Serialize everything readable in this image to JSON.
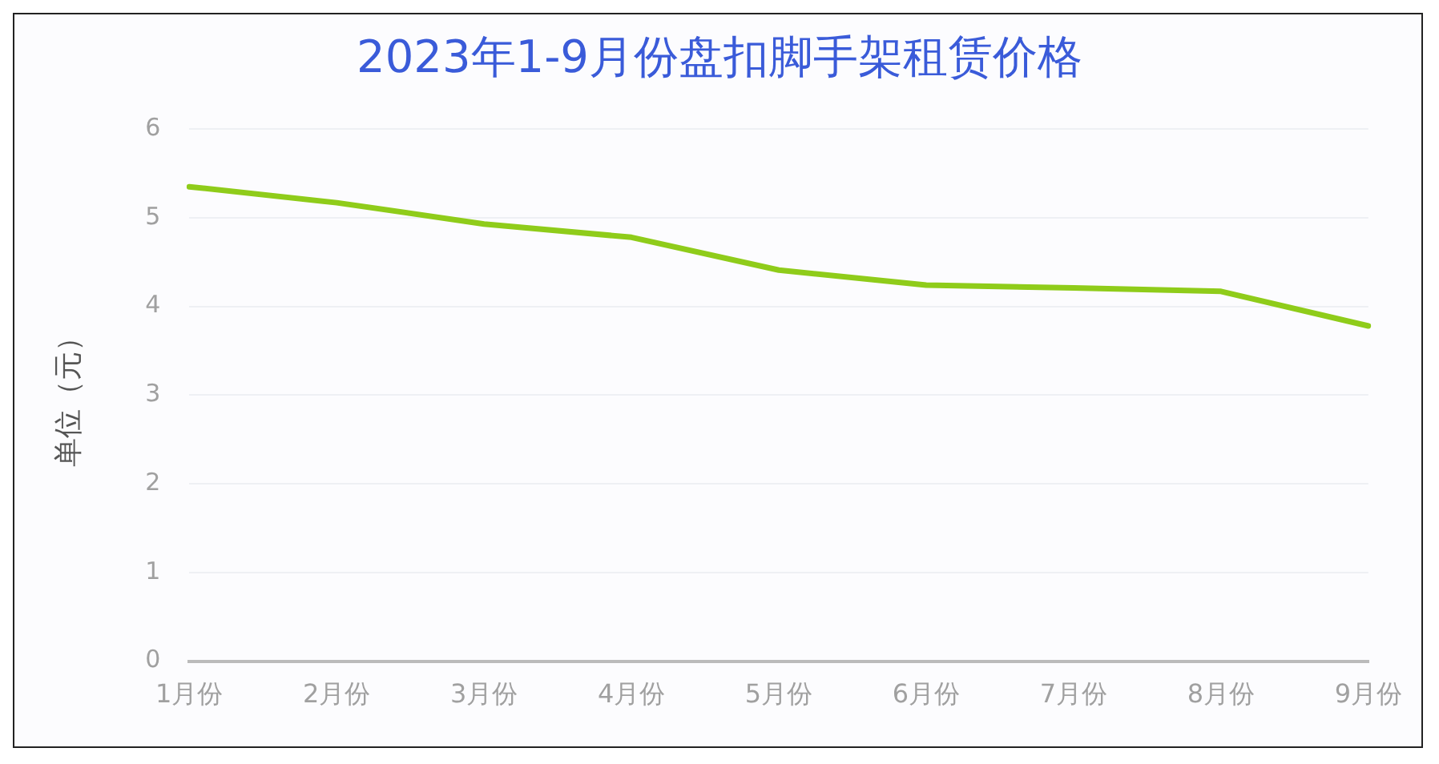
{
  "chart_data": {
    "type": "line",
    "title": "2023年1-9月份盘扣脚手架租赁价格",
    "ylabel": "单位（元）",
    "categories": [
      "1月份",
      "2月份",
      "3月份",
      "4月份",
      "5月份",
      "6月份",
      "7月份",
      "8月份",
      "9月份"
    ],
    "series": [
      {
        "color": "#8fcc1a",
        "values": [
          5.35,
          5.17,
          4.93,
          4.78,
          4.41,
          4.24,
          4.21,
          4.17,
          3.78
        ]
      }
    ],
    "ylim": [
      0,
      6
    ],
    "yticks": [
      0,
      1,
      2,
      3,
      4,
      5,
      6
    ],
    "grid": "y",
    "legend": false,
    "marker": "none",
    "line_style": "solid"
  }
}
